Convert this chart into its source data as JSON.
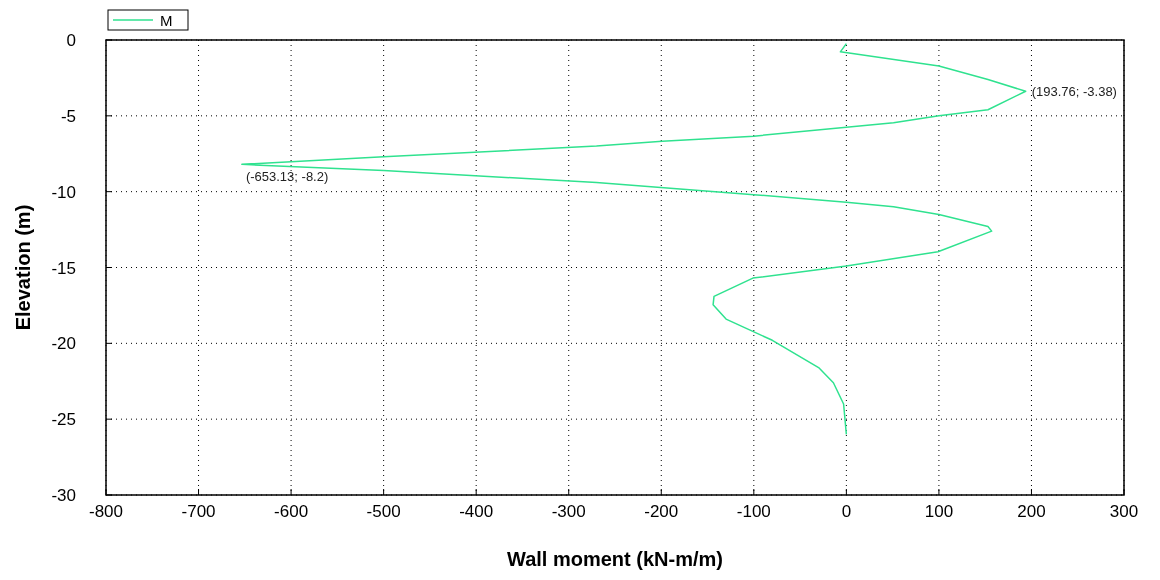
{
  "chart_data": {
    "type": "line",
    "xlabel": "Wall moment (kN-m/m)",
    "ylabel": "Elevation (m)",
    "x": [
      0,
      -6.5,
      100,
      153,
      193.76,
      153,
      100,
      51,
      0,
      -100,
      -199,
      -270,
      -500,
      -653.13,
      -500,
      -270,
      -100,
      0,
      51,
      100,
      153,
      157,
      99,
      0,
      -101,
      -143,
      -144,
      -130,
      -80,
      -30,
      -14,
      -3,
      0
    ],
    "series": [
      {
        "name": "M",
        "color": "#2fe28f",
        "values": [
          -0.24,
          -0.78,
          -1.72,
          -2.6,
          -3.38,
          -4.6,
          -5,
          -5.45,
          -5.75,
          -6.34,
          -6.67,
          -6.99,
          -7.7,
          -8.2,
          -8.6,
          -9.4,
          -10.2,
          -10.7,
          -11.0,
          -11.5,
          -12.3,
          -12.6,
          -13.96,
          -14.9,
          -15.7,
          -16.9,
          -17.46,
          -18.4,
          -19.8,
          -21.6,
          -22.6,
          -24,
          -26
        ]
      }
    ],
    "annotations": [
      {
        "text": "(193.76; -3.38)",
        "x": 193.76,
        "y": -3.38
      },
      {
        "text": "(-653.13; -8.2)",
        "x": -653.13,
        "y": -8.2
      }
    ],
    "xlim": [
      -800,
      300
    ],
    "xticks": [
      -800,
      -700,
      -600,
      -500,
      -400,
      -300,
      -200,
      -100,
      0,
      100,
      200,
      300
    ],
    "ylim": [
      -30,
      0
    ],
    "yticks": [
      -30,
      -25,
      -20,
      -15,
      -10,
      -5,
      0
    ],
    "grid": true,
    "legend": "top left",
    "line_style": "solid",
    "marker": "none"
  }
}
